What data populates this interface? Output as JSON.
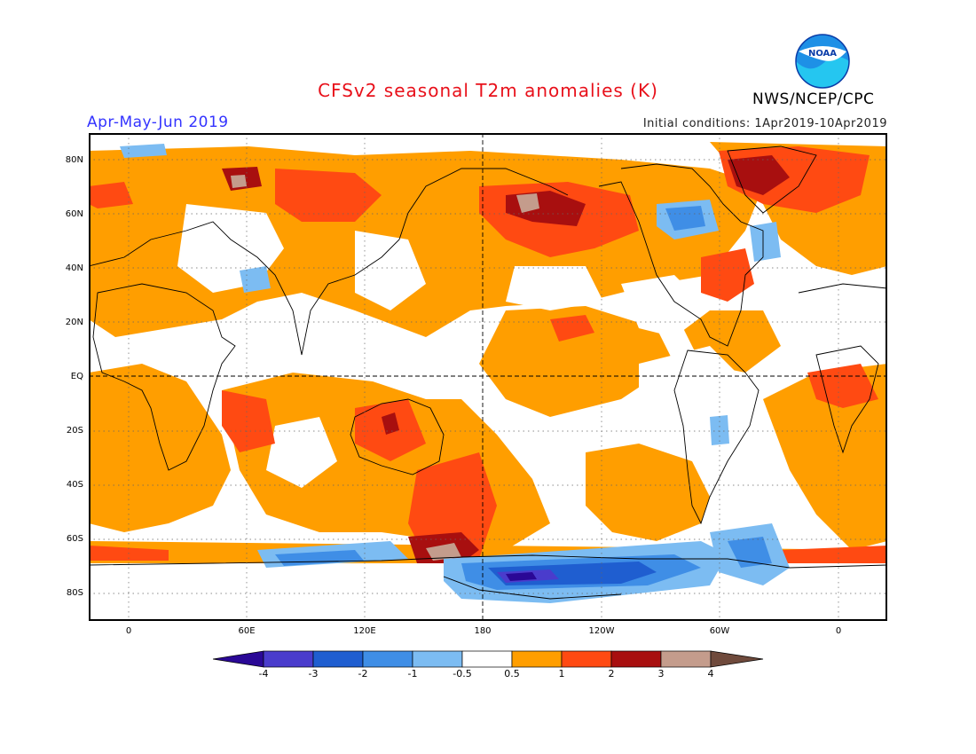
{
  "title": "CFSv2 seasonal T2m anomalies (K)",
  "season": "Apr-May-Jun 2019",
  "initial_conditions": "Initial conditions: 1Apr2019-10Apr2019",
  "agency": "NWS/NCEP/CPC",
  "logo": {
    "text": "NOAA",
    "icon": "noaa-logo"
  },
  "lat_labels": [
    "80N",
    "60N",
    "40N",
    "20N",
    "EQ",
    "20S",
    "40S",
    "60S",
    "80S"
  ],
  "lon_labels": [
    "0",
    "60E",
    "120E",
    "180",
    "120W",
    "60W",
    "0"
  ],
  "colorbar": {
    "labels": [
      "-4",
      "-3",
      "-2",
      "-1",
      "-0.5",
      "0.5",
      "1",
      "2",
      "3",
      "4"
    ],
    "colors": [
      "#2a0896",
      "#4a3ccc",
      "#1f5ed0",
      "#3f8ee6",
      "#7cbcf2",
      "#ffffff",
      "#ff9e00",
      "#ff4a12",
      "#a80f0f",
      "#c49c8c",
      "#6f4a3c"
    ]
  },
  "palette": {
    "warm1": "#ff9e00",
    "warm2": "#ff4a12",
    "warm3": "#a80f0f",
    "warm4": "#c49c8c",
    "cool1": "#7cbcf2",
    "cool2": "#3f8ee6",
    "cool3": "#1f5ed0",
    "cool4": "#4a3ccc",
    "cool5": "#2a0896"
  }
}
